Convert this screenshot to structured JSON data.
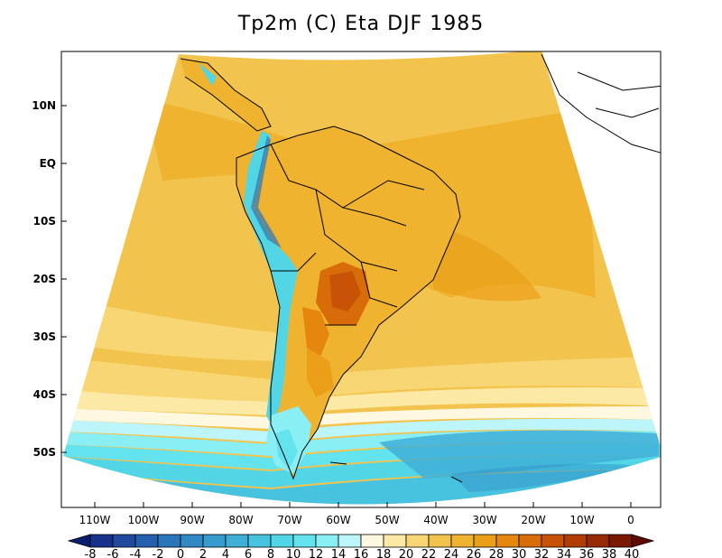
{
  "title": "Tp2m (C) Eta DJF 1985",
  "lat_ticks": [
    "10N",
    "EQ",
    "10S",
    "20S",
    "30S",
    "40S",
    "50S"
  ],
  "lon_ticks": [
    "110W",
    "100W",
    "90W",
    "80W",
    "70W",
    "60W",
    "50W",
    "40W",
    "30W",
    "20W",
    "10W",
    "0"
  ],
  "colorbar": {
    "labels": [
      "-8",
      "-6",
      "-4",
      "-2",
      "0",
      "2",
      "4",
      "6",
      "8",
      "10",
      "12",
      "14",
      "16",
      "18",
      "20",
      "22",
      "24",
      "26",
      "28",
      "30",
      "32",
      "34",
      "36",
      "38",
      "40"
    ],
    "colors": [
      "#0a1e6e",
      "#18328c",
      "#1f4aa0",
      "#2560ae",
      "#2b76ba",
      "#3189c4",
      "#379bcc",
      "#3fafd6",
      "#47c3df",
      "#52d6e6",
      "#63e3ee",
      "#8aeef5",
      "#bdf6fa",
      "#fff8e1",
      "#fde9a6",
      "#f8d673",
      "#f3c44d",
      "#efb330",
      "#eb9f18",
      "#e4870c",
      "#d86c08",
      "#c85206",
      "#b13d05",
      "#952a04",
      "#7a1802",
      "#5e0c02"
    ]
  }
}
